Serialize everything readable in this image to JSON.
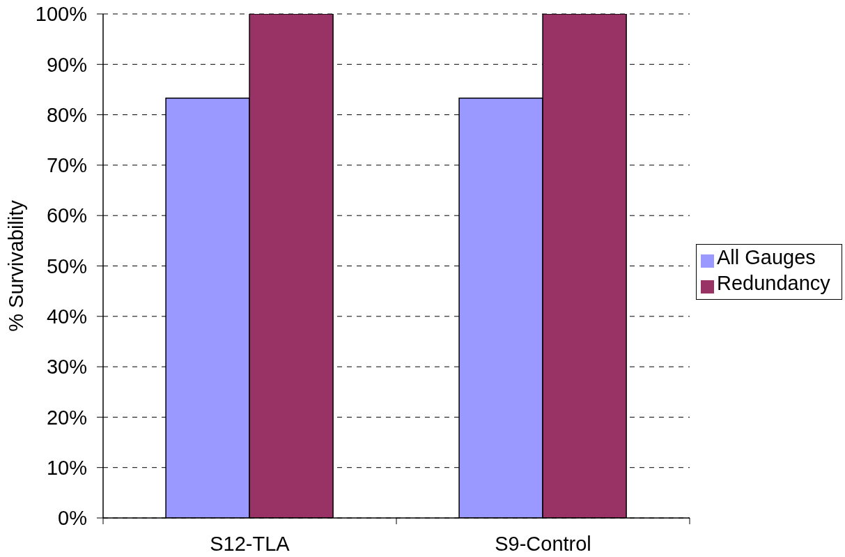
{
  "chart_data": {
    "type": "bar",
    "categories": [
      "S12-TLA",
      "S9-Control"
    ],
    "series": [
      {
        "name": "All Gauges",
        "color": "#9999ff",
        "values": [
          83.3,
          83.3
        ]
      },
      {
        "name": "Redundancy",
        "color": "#993366",
        "values": [
          100,
          100
        ]
      }
    ],
    "ylabel": "% Survivability",
    "ylim": [
      0,
      100
    ],
    "yticks": [
      {
        "value": 0,
        "label": "0%"
      },
      {
        "value": 10,
        "label": "10%"
      },
      {
        "value": 20,
        "label": "20%"
      },
      {
        "value": 30,
        "label": "30%"
      },
      {
        "value": 40,
        "label": "40%"
      },
      {
        "value": 50,
        "label": "50%"
      },
      {
        "value": 60,
        "label": "60%"
      },
      {
        "value": 70,
        "label": "70%"
      },
      {
        "value": 80,
        "label": "80%"
      },
      {
        "value": 90,
        "label": "90%"
      },
      {
        "value": 100,
        "label": "100%"
      }
    ],
    "grid": "y",
    "legend": "right"
  }
}
